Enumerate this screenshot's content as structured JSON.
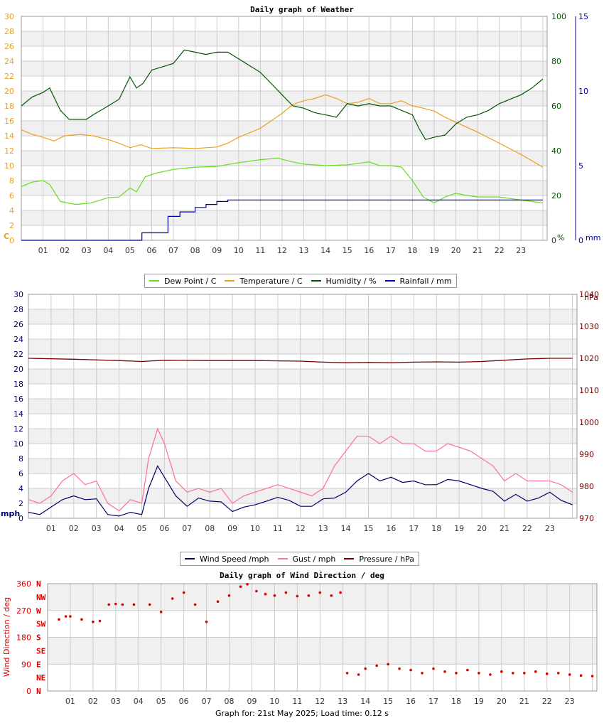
{
  "colors": {
    "dew": "#66dd22",
    "temp": "#e8a020",
    "hum": "#005500",
    "rain": "#0000aa",
    "wind": "#000066",
    "gust": "#ff7799",
    "pres": "#770000",
    "dir": "#dd0000",
    "c_axis": "#e8a020",
    "pct_axis": "#005500",
    "mm_axis": "#0000aa",
    "mph_axis": "#000066",
    "hpa_axis": "#770000",
    "deg_axis": "#dd0000",
    "grid": "#cccccc",
    "band": "#f0f0f0"
  },
  "hours": [
    "01",
    "02",
    "03",
    "04",
    "05",
    "06",
    "07",
    "08",
    "09",
    "10",
    "11",
    "12",
    "13",
    "14",
    "15",
    "16",
    "17",
    "18",
    "19",
    "20",
    "21",
    "22",
    "23"
  ],
  "weather": {
    "title": "Daily graph of Weather",
    "left_ticks": [
      "0",
      "2",
      "4",
      "6",
      "8",
      "10",
      "12",
      "14",
      "16",
      "18",
      "20",
      "22",
      "24",
      "26",
      "28",
      "30"
    ],
    "left_unit": "C",
    "hum_ticks": [
      "0",
      "20",
      "40",
      "60",
      "80",
      "100"
    ],
    "hum_unit": "%",
    "rain_ticks": [
      "0",
      "5",
      "10",
      "15"
    ],
    "rain_unit": "mm",
    "legend": [
      "Dew Point / C",
      "Temperature / C",
      "Humidity / %",
      "Rainfall / mm"
    ]
  },
  "wind": {
    "title": "Daily graph of Wind",
    "left_ticks": [
      "0",
      "2",
      "4",
      "6",
      "8",
      "10",
      "12",
      "14",
      "16",
      "18",
      "20",
      "22",
      "24",
      "26",
      "28",
      "30"
    ],
    "left_unit": "mph",
    "right_ticks": [
      "970",
      "980",
      "990",
      "1000",
      "1010",
      "1020",
      "1030",
      "1040"
    ],
    "right_unit": "hPa",
    "legend": [
      "Wind Speed /mph",
      "Gust / mph",
      "Pressure / hPa"
    ]
  },
  "direction": {
    "title": "Daily graph of Wind Direction / deg",
    "ylabel": "Wind Direction / deg",
    "deg_ticks": [
      "0",
      "90",
      "180",
      "270",
      "360"
    ],
    "compass": [
      "N",
      "NE",
      "E",
      "SE",
      "S",
      "SW",
      "W",
      "NW",
      "N"
    ]
  },
  "footer": "Graph for: 21st May 2025; Load time: 0.12 s",
  "chart_data": [
    {
      "type": "line",
      "title": "Daily graph of Weather",
      "x_unit": "hour",
      "xlim": [
        0,
        24.2
      ],
      "ylim": [
        0,
        30
      ],
      "y2lim": [
        0,
        100
      ],
      "y3lim": [
        0,
        15
      ],
      "grid": true,
      "legend_position": "bottom",
      "series": [
        {
          "name": "Dew Point / C",
          "axis": "C",
          "x": [
            0,
            0.5,
            1,
            1.3,
            1.8,
            2.5,
            3.2,
            4,
            4.5,
            5,
            5.3,
            5.7,
            6.2,
            7,
            8,
            9,
            10,
            11,
            11.8,
            12.5,
            13,
            14,
            15,
            16,
            16.5,
            17,
            17.5,
            18,
            18.5,
            19,
            19.5,
            20,
            20.5,
            21,
            22,
            23,
            24
          ],
          "values": [
            7.2,
            7.8,
            8,
            7.5,
            5.2,
            4.8,
            5,
            5.7,
            5.8,
            7,
            6.5,
            8.5,
            9,
            9.5,
            9.8,
            9.9,
            10.4,
            10.8,
            11,
            10.5,
            10.2,
            10,
            10.1,
            10.5,
            10,
            10,
            9.8,
            8,
            5.8,
            5,
            5.8,
            6.3,
            6,
            5.8,
            5.8,
            5.4,
            5
          ]
        },
        {
          "name": "Temperature / C",
          "axis": "C",
          "x": [
            0,
            0.5,
            1,
            1.5,
            2,
            2.7,
            3.3,
            4,
            4.5,
            5,
            5.5,
            6,
            7,
            8,
            9,
            9.5,
            10,
            11,
            12,
            12.5,
            13,
            13.5,
            14,
            14.5,
            15,
            15.5,
            16,
            16.5,
            17,
            17.5,
            18,
            18.5,
            19,
            19.5,
            20,
            21,
            22,
            23,
            24
          ],
          "values": [
            14.8,
            14.2,
            13.8,
            13.3,
            14,
            14.2,
            14,
            13.5,
            13,
            12.4,
            12.8,
            12.3,
            12.4,
            12.3,
            12.5,
            13,
            13.8,
            15,
            17,
            18.2,
            18.7,
            19,
            19.5,
            19,
            18.3,
            18.5,
            19,
            18.3,
            18.3,
            18.7,
            18,
            17.7,
            17.3,
            16.5,
            15.8,
            14.5,
            13,
            11.5,
            9.8
          ]
        },
        {
          "name": "Humidity / %",
          "axis": "%",
          "x": [
            0,
            0.5,
            1,
            1.3,
            1.8,
            2.2,
            3,
            3.3,
            4,
            4.5,
            5,
            5.3,
            5.6,
            6,
            7,
            7.5,
            8,
            8.5,
            9,
            9.5,
            10,
            10.5,
            11,
            11.5,
            12,
            12.5,
            13,
            13.5,
            14,
            14.5,
            15,
            15.5,
            16,
            16.5,
            17,
            17.5,
            18,
            18.3,
            18.6,
            19,
            19.5,
            20,
            20.5,
            21,
            21.5,
            22,
            23,
            23.5,
            24
          ],
          "values": [
            60,
            64,
            66,
            68,
            58,
            54,
            54,
            56,
            60,
            63,
            73,
            68,
            70,
            76,
            79,
            85,
            84,
            83,
            84,
            84,
            81,
            78,
            75,
            70,
            65,
            60,
            59,
            57,
            56,
            55,
            61,
            60,
            61,
            60,
            60,
            58,
            56,
            50,
            45,
            46,
            47,
            52,
            55,
            56,
            58,
            61,
            65,
            68,
            72
          ]
        },
        {
          "name": "Rainfall / mm",
          "axis": "mm",
          "x": [
            0,
            5.5,
            5.55,
            6.7,
            6.75,
            7.2,
            7.3,
            8,
            8.5,
            9,
            9.5,
            24
          ],
          "values": [
            0,
            0,
            0.5,
            0.5,
            1.6,
            1.6,
            1.9,
            2.2,
            2.4,
            2.6,
            2.7,
            2.7
          ]
        }
      ]
    },
    {
      "type": "line",
      "title": "Daily graph of Wind",
      "x_unit": "hour",
      "xlim": [
        0,
        24.2
      ],
      "ylim": [
        0,
        30
      ],
      "y2lim": [
        970,
        1040
      ],
      "grid": true,
      "legend_position": "bottom",
      "series": [
        {
          "name": "Wind Speed /mph",
          "axis": "mph",
          "x": [
            0,
            0.5,
            1,
            1.5,
            2,
            2.5,
            3,
            3.5,
            4,
            4.5,
            5,
            5.3,
            5.7,
            6,
            6.5,
            7,
            7.5,
            8,
            8.5,
            9,
            9.5,
            10,
            10.5,
            11,
            11.5,
            12,
            12.5,
            13,
            13.5,
            14,
            14.5,
            15,
            15.5,
            16,
            16.5,
            17,
            17.5,
            18,
            18.5,
            19,
            19.5,
            20,
            20.5,
            21,
            21.5,
            22,
            22.5,
            23,
            23.5,
            24
          ],
          "values": [
            0.8,
            0.5,
            1.5,
            2.5,
            3,
            2.5,
            2.6,
            0.5,
            0.3,
            0.8,
            0.5,
            4,
            7,
            5.5,
            3,
            1.6,
            2.7,
            2.3,
            2.2,
            0.9,
            1.5,
            1.8,
            2.3,
            2.8,
            2.4,
            1.6,
            1.6,
            2.6,
            2.7,
            3.5,
            5,
            6,
            5,
            5.5,
            4.8,
            5,
            4.5,
            4.5,
            5.2,
            5,
            4.5,
            4,
            3.6,
            2.3,
            3.2,
            2.3,
            2.7,
            3.5,
            2.4,
            1.8
          ]
        },
        {
          "name": "Gust / mph",
          "axis": "mph",
          "x": [
            0,
            0.5,
            1,
            1.5,
            2,
            2.5,
            3,
            3.5,
            4,
            4.5,
            5,
            5.3,
            5.7,
            6,
            6.5,
            7,
            7.5,
            8,
            8.5,
            9,
            9.5,
            10,
            10.5,
            11,
            11.5,
            12,
            12.5,
            13,
            13.5,
            14,
            14.5,
            15,
            15.5,
            16,
            16.5,
            17,
            17.5,
            18,
            18.5,
            19,
            19.5,
            20,
            20.5,
            21,
            21.5,
            22,
            22.5,
            23,
            23.5,
            24
          ],
          "values": [
            2.5,
            2,
            3,
            5,
            6,
            4.5,
            5,
            2,
            1,
            2.5,
            2,
            8,
            12,
            10,
            5,
            3.5,
            4,
            3.5,
            4,
            2,
            3,
            3.5,
            4,
            4.5,
            4,
            3.5,
            3,
            4,
            7,
            9,
            11,
            11,
            10,
            11,
            10,
            10,
            9,
            9,
            10,
            9.5,
            9,
            8,
            7,
            5,
            6,
            5,
            5,
            5,
            4.5,
            3.5
          ]
        },
        {
          "name": "Pressure / hPa",
          "axis": "hPa",
          "x": [
            0,
            2,
            4,
            5,
            6,
            8,
            10,
            12,
            13,
            14,
            15,
            16,
            17,
            18,
            19,
            20,
            21,
            22,
            23,
            24
          ],
          "values": [
            1020,
            1019.7,
            1019.3,
            1019,
            1019.4,
            1019.3,
            1019.3,
            1019.1,
            1018.8,
            1018.6,
            1018.7,
            1018.6,
            1018.8,
            1018.9,
            1018.8,
            1019,
            1019.4,
            1019.8,
            1020,
            1020
          ]
        }
      ]
    },
    {
      "type": "scatter",
      "title": "Daily graph of Wind Direction / deg",
      "x_unit": "hour",
      "xlim": [
        0,
        24.2
      ],
      "ylim": [
        0,
        360
      ],
      "grid": true,
      "series": [
        {
          "name": "Wind Direction / deg",
          "x": [
            0.5,
            0.8,
            1,
            1.5,
            2,
            2.3,
            2.7,
            3,
            3.3,
            3.8,
            4.5,
            5,
            5.5,
            6,
            6.5,
            7,
            7.5,
            8,
            8.5,
            8.8,
            9.2,
            9.6,
            10,
            10.5,
            11,
            11.5,
            12,
            12.5,
            12.9,
            13.2,
            13.7,
            14,
            14.5,
            15,
            15.5,
            16,
            16.5,
            17,
            17.5,
            18,
            18.5,
            19,
            19.5,
            20,
            20.5,
            21,
            21.5,
            22,
            22.5,
            23,
            23.5,
            24
          ],
          "values": [
            240,
            250,
            250,
            240,
            232,
            235,
            290,
            292,
            290,
            290,
            290,
            265,
            310,
            330,
            290,
            232,
            300,
            320,
            350,
            358,
            335,
            325,
            320,
            330,
            318,
            320,
            330,
            320,
            330,
            60,
            55,
            75,
            85,
            90,
            75,
            70,
            60,
            75,
            65,
            60,
            70,
            60,
            55,
            65,
            60,
            60,
            65,
            58,
            60,
            55,
            52,
            50
          ]
        }
      ]
    }
  ]
}
